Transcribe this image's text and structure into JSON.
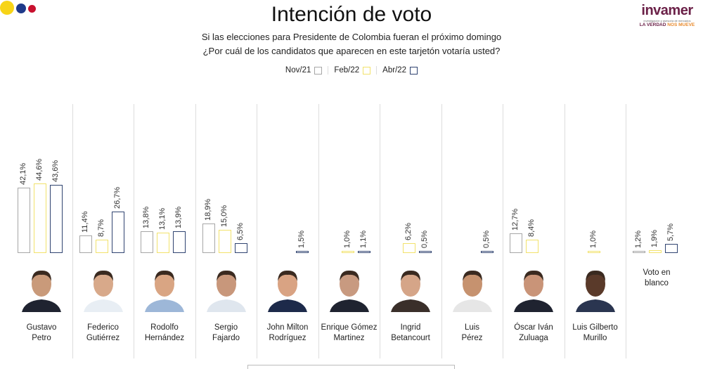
{
  "header": {
    "title": "Intención de voto",
    "subtitle_1": "Si las elecciones para Presidente de Colombia fueran el próximo domingo",
    "subtitle_2": "¿Por cuál de los candidatos que aparecen en este tarjetón votaría usted?"
  },
  "logo": {
    "name": "invamer",
    "tagline": "investigación y asesoría de mercados",
    "slogan_a": "LA VERDAD",
    "slogan_b": "NOS MUEVE"
  },
  "colors": {
    "Nov/21": "#a6a6a6",
    "Feb/22": "#f2e26b",
    "Abr/22": "#2f4370",
    "dot_yellow": "#f7d417",
    "dot_blue": "#1f3a8a",
    "dot_red": "#c8102e"
  },
  "chart_data": {
    "type": "bar",
    "title": "Intención de voto",
    "legend": [
      "Nov/21",
      "Feb/22",
      "Abr/22"
    ],
    "legend_position": "top",
    "grid": false,
    "categories": [
      "Gustavo Petro",
      "Federico Gutiérrez",
      "Rodolfo Hernández",
      "Sergio Fajardo",
      "John Milton Rodríguez",
      "Enrique Gómez Martinez",
      "Ingrid Betancourt",
      "Luis Pérez",
      "Óscar Iván Zuluaga",
      "Luis Gilberto Murillo",
      "Voto en blanco"
    ],
    "series": [
      {
        "name": "Nov/21",
        "values": [
          42.1,
          11.4,
          13.8,
          18.9,
          null,
          null,
          null,
          null,
          12.7,
          null,
          1.2
        ],
        "labels": [
          "42,1%",
          "11,4%",
          "13,8%",
          "18,9%",
          null,
          null,
          null,
          null,
          "12,7%",
          null,
          "1,2%"
        ]
      },
      {
        "name": "Feb/22",
        "values": [
          44.6,
          8.7,
          13.1,
          15.0,
          null,
          1.0,
          6.2,
          null,
          8.4,
          1.0,
          1.9
        ],
        "labels": [
          "44,6%",
          "8,7%",
          "13,1%",
          "15,0%",
          null,
          "1,0%",
          "6,2%",
          null,
          "8,4%",
          "1,0%",
          "1,9%"
        ]
      },
      {
        "name": "Abr/22",
        "values": [
          43.6,
          26.7,
          13.9,
          6.5,
          1.5,
          1.1,
          0.5,
          0.5,
          null,
          null,
          5.7
        ],
        "labels": [
          "43,6%",
          "26,7%",
          "13,9%",
          "6,5%",
          "1,5%",
          "1,1%",
          "0,5%",
          "0,5%",
          null,
          null,
          "5,7%"
        ]
      }
    ],
    "candidate_labels": [
      "Gustavo\nPetro",
      "Federico\nGutiérrez",
      "Rodolfo\nHernández",
      "Sergio\nFajardo",
      "John Milton\nRodríguez",
      "Enrique Gómez\nMartinez",
      "Ingrid\nBetancourt",
      "Luis\nPérez",
      "Óscar Iván\nZuluaga",
      "Luis Gilberto\nMurillo",
      "Voto en\nblanco"
    ]
  }
}
